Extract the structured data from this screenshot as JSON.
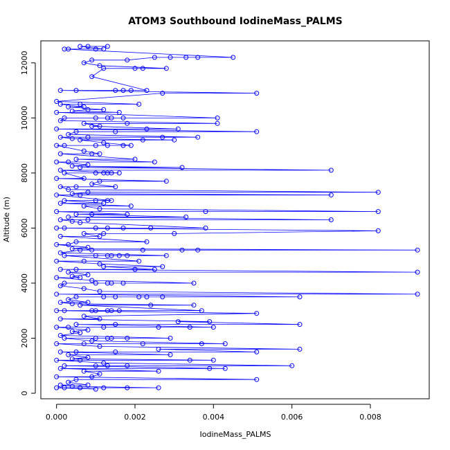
{
  "chart_data": {
    "type": "scatter",
    "title": "ATOM3 Southbound IodineMass_PALMS",
    "xlabel": "IodineMass_PALMS",
    "ylabel": "Altitude (m)",
    "xlim": [
      -0.0004,
      0.0095
    ],
    "ylim": [
      -200,
      12800
    ],
    "x_ticks": [
      0.0,
      0.002,
      0.004,
      0.006,
      0.008
    ],
    "x_tick_labels": [
      "0.000",
      "0.002",
      "0.004",
      "0.006",
      "0.008"
    ],
    "y_ticks": [
      0,
      2000,
      4000,
      6000,
      8000,
      10000,
      12000
    ],
    "y_tick_labels": [
      "0",
      "2000",
      "4000",
      "6000",
      "8000",
      "10000",
      "12000"
    ],
    "plot_style": "both (points and lines)",
    "marker": "open circle",
    "color": "#0000FF",
    "grid": false,
    "legend": "none",
    "series": [
      {
        "points": [
          [
            0.0,
            200
          ],
          [
            0.0,
            600
          ],
          [
            0.0,
            1200
          ],
          [
            0.0,
            1800
          ],
          [
            0.0,
            2400
          ],
          [
            0.0,
            3000
          ],
          [
            0.0,
            3600
          ],
          [
            0.0,
            4200
          ],
          [
            0.0,
            4800
          ],
          [
            0.0,
            5400
          ],
          [
            0.0,
            6000
          ],
          [
            0.0,
            6600
          ],
          [
            0.0,
            7200
          ],
          [
            0.0,
            7800
          ],
          [
            0.0,
            8400
          ],
          [
            0.0,
            9000
          ],
          [
            0.0,
            9600
          ],
          [
            0.0,
            10200
          ],
          [
            0.0,
            10600
          ],
          [
            0.0001,
            300
          ],
          [
            0.0001,
            900
          ],
          [
            0.0001,
            1500
          ],
          [
            0.0001,
            2100
          ],
          [
            0.0001,
            2700
          ],
          [
            0.0001,
            3300
          ],
          [
            0.0001,
            3900
          ],
          [
            0.0001,
            4500
          ],
          [
            0.0001,
            5100
          ],
          [
            0.0001,
            5700
          ],
          [
            0.0001,
            6300
          ],
          [
            0.0001,
            6900
          ],
          [
            0.0001,
            7500
          ],
          [
            0.0001,
            8100
          ],
          [
            0.0001,
            8700
          ],
          [
            0.0001,
            9300
          ],
          [
            0.0001,
            9900
          ],
          [
            0.0001,
            10500
          ],
          [
            0.0001,
            11000
          ],
          [
            0.0002,
            200
          ],
          [
            0.0002,
            1000
          ],
          [
            0.0002,
            2000
          ],
          [
            0.0002,
            3000
          ],
          [
            0.0002,
            4000
          ],
          [
            0.0002,
            5000
          ],
          [
            0.0002,
            6000
          ],
          [
            0.0002,
            7000
          ],
          [
            0.0002,
            8000
          ],
          [
            0.0002,
            9000
          ],
          [
            0.0002,
            10000
          ],
          [
            0.0002,
            12500
          ],
          [
            0.0003,
            400
          ],
          [
            0.0003,
            1400
          ],
          [
            0.0003,
            2400
          ],
          [
            0.0003,
            3400
          ],
          [
            0.0003,
            4400
          ],
          [
            0.0003,
            5400
          ],
          [
            0.0003,
            6400
          ],
          [
            0.0003,
            7400
          ],
          [
            0.0003,
            8400
          ],
          [
            0.0003,
            9400
          ],
          [
            0.0003,
            10400
          ],
          [
            0.0003,
            12500
          ],
          [
            0.0004,
            250
          ],
          [
            0.0004,
            1250
          ],
          [
            0.0004,
            2250
          ],
          [
            0.0004,
            3250
          ],
          [
            0.0004,
            4250
          ],
          [
            0.0004,
            5250
          ],
          [
            0.0004,
            6250
          ],
          [
            0.0004,
            7250
          ],
          [
            0.0004,
            8250
          ],
          [
            0.0004,
            9250
          ],
          [
            0.0004,
            10250
          ],
          [
            0.0005,
            500
          ],
          [
            0.0005,
            1500
          ],
          [
            0.0005,
            2500
          ],
          [
            0.0005,
            3500
          ],
          [
            0.0005,
            4500
          ],
          [
            0.0005,
            5500
          ],
          [
            0.0005,
            6500
          ],
          [
            0.0005,
            7500
          ],
          [
            0.0005,
            8500
          ],
          [
            0.0005,
            9500
          ],
          [
            0.0005,
            11000
          ],
          [
            0.0006,
            200
          ],
          [
            0.0006,
            1200
          ],
          [
            0.0006,
            2200
          ],
          [
            0.0006,
            3200
          ],
          [
            0.0006,
            4200
          ],
          [
            0.0006,
            5200
          ],
          [
            0.0006,
            6200
          ],
          [
            0.0006,
            7200
          ],
          [
            0.0006,
            8200
          ],
          [
            0.0006,
            9200
          ],
          [
            0.0006,
            10500
          ],
          [
            0.0006,
            12600
          ],
          [
            0.0007,
            800
          ],
          [
            0.0007,
            1800
          ],
          [
            0.0007,
            2800
          ],
          [
            0.0007,
            3800
          ],
          [
            0.0007,
            4800
          ],
          [
            0.0007,
            5800
          ],
          [
            0.0007,
            6800
          ],
          [
            0.0007,
            7800
          ],
          [
            0.0007,
            8800
          ],
          [
            0.0007,
            9800
          ],
          [
            0.0007,
            10400
          ],
          [
            0.0007,
            12000
          ],
          [
            0.0008,
            300
          ],
          [
            0.0008,
            1300
          ],
          [
            0.0008,
            2300
          ],
          [
            0.0008,
            3300
          ],
          [
            0.0008,
            4300
          ],
          [
            0.0008,
            5300
          ],
          [
            0.0008,
            6300
          ],
          [
            0.0008,
            7300
          ],
          [
            0.0008,
            8300
          ],
          [
            0.0008,
            9300
          ],
          [
            0.0008,
            10300
          ],
          [
            0.0008,
            12600
          ],
          [
            0.0009,
            600
          ],
          [
            0.0009,
            1900
          ],
          [
            0.0009,
            3000
          ],
          [
            0.0009,
            4100
          ],
          [
            0.0009,
            5200
          ],
          [
            0.0009,
            6500
          ],
          [
            0.0009,
            7600
          ],
          [
            0.0009,
            8700
          ],
          [
            0.0009,
            9700
          ],
          [
            0.0009,
            11500
          ],
          [
            0.0009,
            12100
          ],
          [
            0.001,
            150
          ],
          [
            0.001,
            1000
          ],
          [
            0.001,
            2000
          ],
          [
            0.001,
            3000
          ],
          [
            0.001,
            4000
          ],
          [
            0.001,
            5000
          ],
          [
            0.001,
            6000
          ],
          [
            0.001,
            7000
          ],
          [
            0.001,
            8000
          ],
          [
            0.001,
            9000
          ],
          [
            0.001,
            10000
          ],
          [
            0.001,
            12500
          ],
          [
            0.0011,
            700
          ],
          [
            0.0011,
            1700
          ],
          [
            0.0011,
            2700
          ],
          [
            0.0011,
            3700
          ],
          [
            0.0011,
            4700
          ],
          [
            0.0011,
            5700
          ],
          [
            0.0011,
            6700
          ],
          [
            0.0011,
            7700
          ],
          [
            0.0011,
            8700
          ],
          [
            0.0011,
            9700
          ],
          [
            0.0011,
            11900
          ],
          [
            0.0012,
            200
          ],
          [
            0.0012,
            1100
          ],
          [
            0.0012,
            2400
          ],
          [
            0.0012,
            3500
          ],
          [
            0.0012,
            4600
          ],
          [
            0.0012,
            5800
          ],
          [
            0.0012,
            6900
          ],
          [
            0.0012,
            8000
          ],
          [
            0.0012,
            9100
          ],
          [
            0.0012,
            10300
          ],
          [
            0.0012,
            11800
          ],
          [
            0.0012,
            12500
          ],
          [
            0.0013,
            1000
          ],
          [
            0.0013,
            2000
          ],
          [
            0.0013,
            3000
          ],
          [
            0.0013,
            4000
          ],
          [
            0.0013,
            5000
          ],
          [
            0.0013,
            6000
          ],
          [
            0.0013,
            7000
          ],
          [
            0.0013,
            8000
          ],
          [
            0.0013,
            9000
          ],
          [
            0.0013,
            10000
          ],
          [
            0.0013,
            12600
          ],
          [
            0.0014,
            2000
          ],
          [
            0.0014,
            3000
          ],
          [
            0.0014,
            4000
          ],
          [
            0.0014,
            5000
          ],
          [
            0.0014,
            7000
          ],
          [
            0.0014,
            8000
          ],
          [
            0.0014,
            10000
          ],
          [
            0.0015,
            1500
          ],
          [
            0.0015,
            2500
          ],
          [
            0.0015,
            3500
          ],
          [
            0.0015,
            7500
          ],
          [
            0.0015,
            9500
          ],
          [
            0.0015,
            11000
          ],
          [
            0.0016,
            3000
          ],
          [
            0.0016,
            5000
          ],
          [
            0.0016,
            8000
          ],
          [
            0.0016,
            10200
          ],
          [
            0.0017,
            4000
          ],
          [
            0.0017,
            6000
          ],
          [
            0.0017,
            9000
          ],
          [
            0.0017,
            10000
          ],
          [
            0.0017,
            11000
          ],
          [
            0.0018,
            200
          ],
          [
            0.0018,
            1000
          ],
          [
            0.0018,
            2000
          ],
          [
            0.0018,
            5000
          ],
          [
            0.0018,
            6500
          ],
          [
            0.0018,
            9800
          ],
          [
            0.0018,
            12100
          ],
          [
            0.0019,
            6800
          ],
          [
            0.0019,
            9000
          ],
          [
            0.0019,
            11000
          ],
          [
            0.002,
            4500
          ],
          [
            0.002,
            8500
          ],
          [
            0.002,
            11800
          ],
          [
            0.0021,
            3500
          ],
          [
            0.0021,
            4800
          ],
          [
            0.0021,
            10500
          ],
          [
            0.0022,
            1800
          ],
          [
            0.0022,
            5200
          ],
          [
            0.0022,
            9200
          ],
          [
            0.0022,
            11800
          ],
          [
            0.0023,
            3500
          ],
          [
            0.0023,
            5500
          ],
          [
            0.0023,
            9600
          ],
          [
            0.0023,
            11000
          ],
          [
            0.0024,
            3200
          ],
          [
            0.0024,
            6000
          ],
          [
            0.0025,
            4500
          ],
          [
            0.0025,
            8400
          ],
          [
            0.0025,
            12200
          ],
          [
            0.0026,
            200
          ],
          [
            0.0026,
            800
          ],
          [
            0.0026,
            1600
          ],
          [
            0.0026,
            2400
          ],
          [
            0.0027,
            3500
          ],
          [
            0.0027,
            4600
          ],
          [
            0.0027,
            9300
          ],
          [
            0.0027,
            10900
          ],
          [
            0.0028,
            5000
          ],
          [
            0.0028,
            7700
          ],
          [
            0.0028,
            11800
          ],
          [
            0.0029,
            1400
          ],
          [
            0.0029,
            2000
          ],
          [
            0.0029,
            12200
          ],
          [
            0.003,
            5800
          ],
          [
            0.003,
            9200
          ],
          [
            0.0031,
            2600
          ],
          [
            0.0031,
            9600
          ],
          [
            0.0032,
            5200
          ],
          [
            0.0032,
            8200
          ],
          [
            0.0033,
            6400
          ],
          [
            0.0033,
            12200
          ],
          [
            0.0034,
            1200
          ],
          [
            0.0034,
            2400
          ],
          [
            0.0035,
            3200
          ],
          [
            0.0035,
            4000
          ],
          [
            0.0036,
            5200
          ],
          [
            0.0036,
            9300
          ],
          [
            0.0036,
            12200
          ],
          [
            0.0037,
            1800
          ],
          [
            0.0037,
            3000
          ],
          [
            0.0038,
            6000
          ],
          [
            0.0038,
            6600
          ],
          [
            0.0039,
            900
          ],
          [
            0.0039,
            2600
          ],
          [
            0.004,
            1200
          ],
          [
            0.004,
            2400
          ],
          [
            0.0041,
            9800
          ],
          [
            0.0041,
            10000
          ],
          [
            0.0043,
            900
          ],
          [
            0.0043,
            1800
          ],
          [
            0.0045,
            12200
          ],
          [
            0.0051,
            500
          ],
          [
            0.0051,
            1500
          ],
          [
            0.0051,
            2900
          ],
          [
            0.0051,
            9500
          ],
          [
            0.0051,
            10900
          ],
          [
            0.006,
            1000
          ],
          [
            0.0062,
            1600
          ],
          [
            0.0062,
            2500
          ],
          [
            0.0062,
            3500
          ],
          [
            0.007,
            6300
          ],
          [
            0.007,
            7200
          ],
          [
            0.007,
            8100
          ],
          [
            0.0082,
            5900
          ],
          [
            0.0082,
            6600
          ],
          [
            0.0082,
            7300
          ],
          [
            0.0092,
            3600
          ],
          [
            0.0092,
            4400
          ],
          [
            0.0092,
            5200
          ]
        ]
      }
    ]
  }
}
